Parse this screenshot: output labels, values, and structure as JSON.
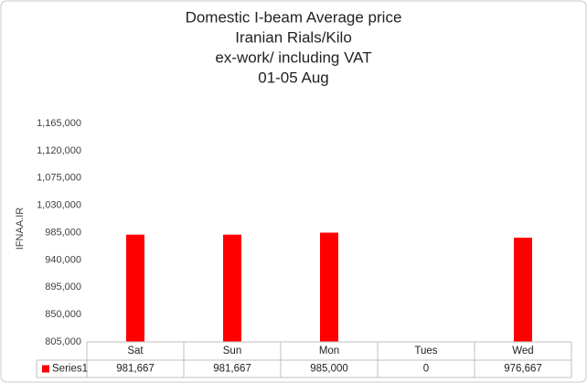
{
  "chart_data": {
    "type": "bar",
    "title": [
      "Domestic I-beam Average price",
      "Iranian Rials/Kilo",
      "ex-work/ including VAT",
      "01-05 Aug"
    ],
    "y_label": "IFNAA.IR",
    "categories": [
      "Sat",
      "Sun",
      "Mon",
      "Tues",
      "Wed"
    ],
    "series": [
      {
        "name": "Series1",
        "color": "#ff0000",
        "values": [
          981667,
          981667,
          985000,
          0,
          976667
        ],
        "value_labels": [
          "981,667",
          "981,667",
          "985,000",
          "0",
          "976,667"
        ]
      }
    ],
    "ylim": [
      805000,
      1165000
    ],
    "yticks": [
      {
        "value": 805000,
        "label": "805,000"
      },
      {
        "value": 850000,
        "label": "850,000"
      },
      {
        "value": 895000,
        "label": "895,000"
      },
      {
        "value": 940000,
        "label": "940,000"
      },
      {
        "value": 985000,
        "label": "985,000"
      },
      {
        "value": 1030000,
        "label": "1,030,000"
      },
      {
        "value": 1075000,
        "label": "1,075,000"
      },
      {
        "value": 1120000,
        "label": "1,120,000"
      },
      {
        "value": 1165000,
        "label": "1,165,000"
      }
    ],
    "grid": false
  }
}
